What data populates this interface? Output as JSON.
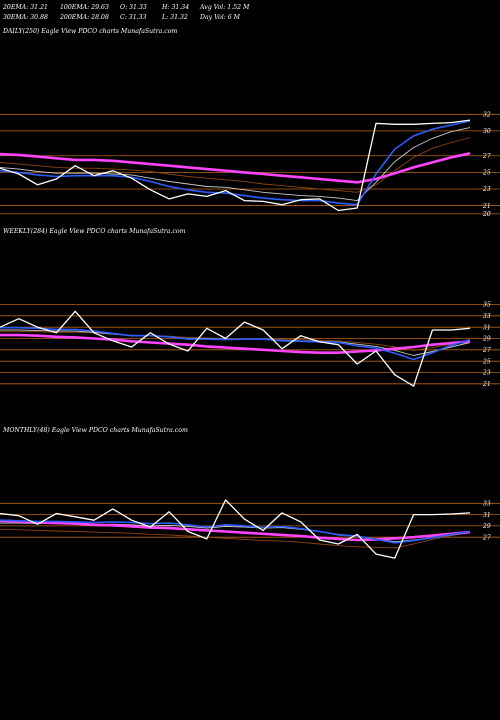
{
  "header": {
    "row1": [
      "20EMA: 31.21",
      "100EMA: 29.63",
      "O: 31.33",
      "H: 31.34",
      "Avg Vol: 1.52  M"
    ],
    "row2": [
      "30EMA: 30.88",
      "200EMA: 28.08",
      "C: 31.33",
      "L: 31.32",
      "Day Vol: 6  M"
    ]
  },
  "colors": {
    "background": "#000000",
    "price": "#ffffff",
    "gridline": "#b8621a",
    "ema_short": "#2b5cff",
    "ema_long": "#ff44ff",
    "ema_mid_a": "#c8c8c8",
    "ema_mid_b": "#8b4513"
  },
  "chart_data": [
    {
      "type": "line",
      "title": "DAILY(250) Eagle  View  PDCO charts MunafaSutra.com",
      "ylim": [
        19.5,
        33
      ],
      "y_ticks": [
        32,
        30,
        27,
        25,
        23,
        21,
        20
      ],
      "grid": true,
      "x": [
        0,
        10,
        20,
        30,
        40,
        50,
        60,
        70,
        80,
        90,
        100,
        110,
        120,
        130,
        140,
        150,
        160,
        170,
        180,
        190,
        200,
        210,
        220,
        230,
        240,
        250
      ],
      "series": [
        {
          "role": "price",
          "values": [
            25.5,
            24.8,
            23.5,
            24.2,
            25.8,
            24.6,
            25.2,
            24.3,
            22.9,
            21.8,
            22.4,
            22.1,
            22.8,
            21.6,
            21.5,
            21.1,
            21.7,
            21.8,
            20.4,
            20.7,
            30.9,
            30.8,
            30.8,
            30.9,
            31.0,
            31.3
          ]
        },
        {
          "role": "ema_short",
          "values": [
            25.2,
            25.0,
            24.7,
            24.5,
            24.6,
            24.6,
            24.6,
            24.4,
            23.9,
            23.3,
            22.9,
            22.6,
            22.5,
            22.2,
            21.9,
            21.7,
            21.6,
            21.6,
            21.3,
            21.1,
            24.8,
            27.8,
            29.4,
            30.2,
            30.7,
            31.2
          ]
        },
        {
          "role": "ema_mid_a",
          "values": [
            25.6,
            25.4,
            25.1,
            24.9,
            24.9,
            24.9,
            24.8,
            24.7,
            24.3,
            23.9,
            23.6,
            23.3,
            23.2,
            22.9,
            22.6,
            22.4,
            22.2,
            22.1,
            21.9,
            21.6,
            23.8,
            26.3,
            28.0,
            29.1,
            29.9,
            30.4
          ]
        },
        {
          "role": "ema_mid_b",
          "values": [
            26.2,
            26.0,
            25.8,
            25.6,
            25.5,
            25.5,
            25.4,
            25.3,
            25.1,
            24.8,
            24.5,
            24.3,
            24.1,
            23.9,
            23.6,
            23.4,
            23.2,
            23.0,
            22.8,
            22.6,
            23.5,
            25.2,
            26.8,
            27.9,
            28.6,
            29.2
          ]
        },
        {
          "role": "ema_long",
          "values": [
            27.2,
            27.1,
            26.9,
            26.7,
            26.5,
            26.5,
            26.4,
            26.2,
            26.0,
            25.8,
            25.6,
            25.4,
            25.2,
            25.0,
            24.8,
            24.6,
            24.4,
            24.2,
            24.0,
            23.8,
            24.2,
            24.9,
            25.6,
            26.2,
            26.8,
            27.3
          ]
        }
      ]
    },
    {
      "type": "line",
      "title": "WEEKLY(284) Eagle  View  PDCO charts MunafaSutra.com",
      "ylim": [
        18.5,
        36.5
      ],
      "y_ticks": [
        35,
        33,
        31,
        29,
        27,
        25,
        23,
        21
      ],
      "grid": true,
      "x": [
        0,
        10,
        20,
        30,
        40,
        50,
        60,
        70,
        80,
        90,
        100,
        110,
        120,
        130,
        140,
        150,
        160,
        170,
        180,
        190,
        200,
        210,
        220,
        230,
        240,
        250
      ],
      "series": [
        {
          "role": "price",
          "values": [
            31.0,
            32.5,
            31.0,
            30.0,
            33.8,
            30.0,
            28.6,
            27.5,
            30.0,
            28.0,
            26.8,
            30.8,
            29.0,
            31.9,
            30.5,
            27.2,
            29.5,
            28.4,
            27.9,
            24.5,
            26.8,
            22.6,
            20.6,
            30.5,
            30.5,
            30.8
          ]
        },
        {
          "role": "ema_short",
          "values": [
            30.9,
            30.9,
            30.8,
            30.6,
            30.6,
            30.3,
            29.9,
            29.5,
            29.5,
            29.3,
            28.9,
            28.9,
            28.8,
            28.9,
            28.9,
            28.6,
            28.5,
            28.4,
            28.3,
            27.7,
            27.3,
            26.4,
            25.3,
            26.5,
            27.8,
            28.8
          ]
        },
        {
          "role": "ema_mid_a",
          "values": [
            30.5,
            30.5,
            30.4,
            30.3,
            30.3,
            30.1,
            29.8,
            29.5,
            29.5,
            29.3,
            29.0,
            29.0,
            28.9,
            28.9,
            28.9,
            28.7,
            28.6,
            28.5,
            28.4,
            28.0,
            27.6,
            26.9,
            26.0,
            26.7,
            27.5,
            28.3
          ]
        },
        {
          "role": "ema_mid_b",
          "values": [
            30.2,
            30.2,
            30.2,
            30.1,
            30.1,
            30.0,
            29.8,
            29.6,
            29.5,
            29.4,
            29.2,
            29.1,
            29.0,
            29.0,
            29.0,
            28.9,
            28.8,
            28.7,
            28.6,
            28.3,
            28.0,
            27.5,
            26.9,
            27.4,
            28.0,
            28.6
          ]
        },
        {
          "role": "ema_long",
          "values": [
            29.6,
            29.6,
            29.5,
            29.3,
            29.2,
            29.0,
            28.8,
            28.5,
            28.3,
            28.1,
            27.9,
            27.6,
            27.4,
            27.2,
            27.0,
            26.8,
            26.6,
            26.5,
            26.5,
            26.7,
            26.9,
            27.2,
            27.5,
            27.9,
            28.2,
            28.5
          ]
        }
      ]
    },
    {
      "type": "line",
      "title": "MONTHLY(48) Eagle  View  PDCO charts MunafaSutra.com",
      "ylim": [
        18,
        35
      ],
      "y_ticks": [
        33,
        31,
        29,
        27
      ],
      "grid": true,
      "x": [
        0,
        10,
        20,
        30,
        40,
        50,
        60,
        70,
        80,
        90,
        100,
        110,
        120,
        130,
        140,
        150,
        160,
        170,
        180,
        190,
        200,
        210,
        220,
        230,
        240,
        250
      ],
      "series": [
        {
          "role": "price",
          "values": [
            31.2,
            30.8,
            29.3,
            31.2,
            30.6,
            30.0,
            32.0,
            30.0,
            28.8,
            31.5,
            28.0,
            26.7,
            33.6,
            30.2,
            28.2,
            31.3,
            29.7,
            26.5,
            25.8,
            27.5,
            24.0,
            23.3,
            31.0,
            31.0,
            31.1,
            31.3
          ]
        },
        {
          "role": "ema_short",
          "values": [
            30.0,
            29.9,
            29.8,
            29.8,
            29.7,
            29.6,
            29.7,
            29.6,
            29.4,
            29.5,
            29.2,
            28.8,
            29.2,
            29.0,
            28.7,
            28.9,
            28.5,
            28.0,
            27.4,
            27.2,
            26.6,
            26.0,
            26.4,
            26.9,
            27.5,
            28.0
          ]
        },
        {
          "role": "ema_mid_a",
          "values": [
            29.5,
            29.5,
            29.4,
            29.4,
            29.3,
            29.2,
            29.3,
            29.2,
            29.0,
            29.1,
            28.9,
            28.6,
            28.9,
            28.8,
            28.6,
            28.7,
            28.4,
            28.0,
            27.5,
            27.2,
            26.7,
            26.2,
            26.5,
            26.9,
            27.4,
            27.8
          ]
        },
        {
          "role": "ema_mid_b",
          "values": [
            28.4,
            28.3,
            28.2,
            28.1,
            28.0,
            27.9,
            27.8,
            27.7,
            27.5,
            27.4,
            27.2,
            27.0,
            26.8,
            26.6,
            26.4,
            26.3,
            26.1,
            25.8,
            25.5,
            25.3,
            25.2,
            25.1,
            25.8,
            26.6,
            27.3,
            27.8
          ]
        },
        {
          "role": "ema_long",
          "values": [
            29.9,
            29.8,
            29.6,
            29.5,
            29.4,
            29.2,
            29.1,
            28.9,
            28.7,
            28.6,
            28.4,
            28.2,
            28.0,
            27.8,
            27.6,
            27.4,
            27.2,
            26.9,
            26.7,
            26.5,
            26.6,
            26.8,
            27.0,
            27.3,
            27.6,
            27.9
          ]
        }
      ]
    }
  ]
}
